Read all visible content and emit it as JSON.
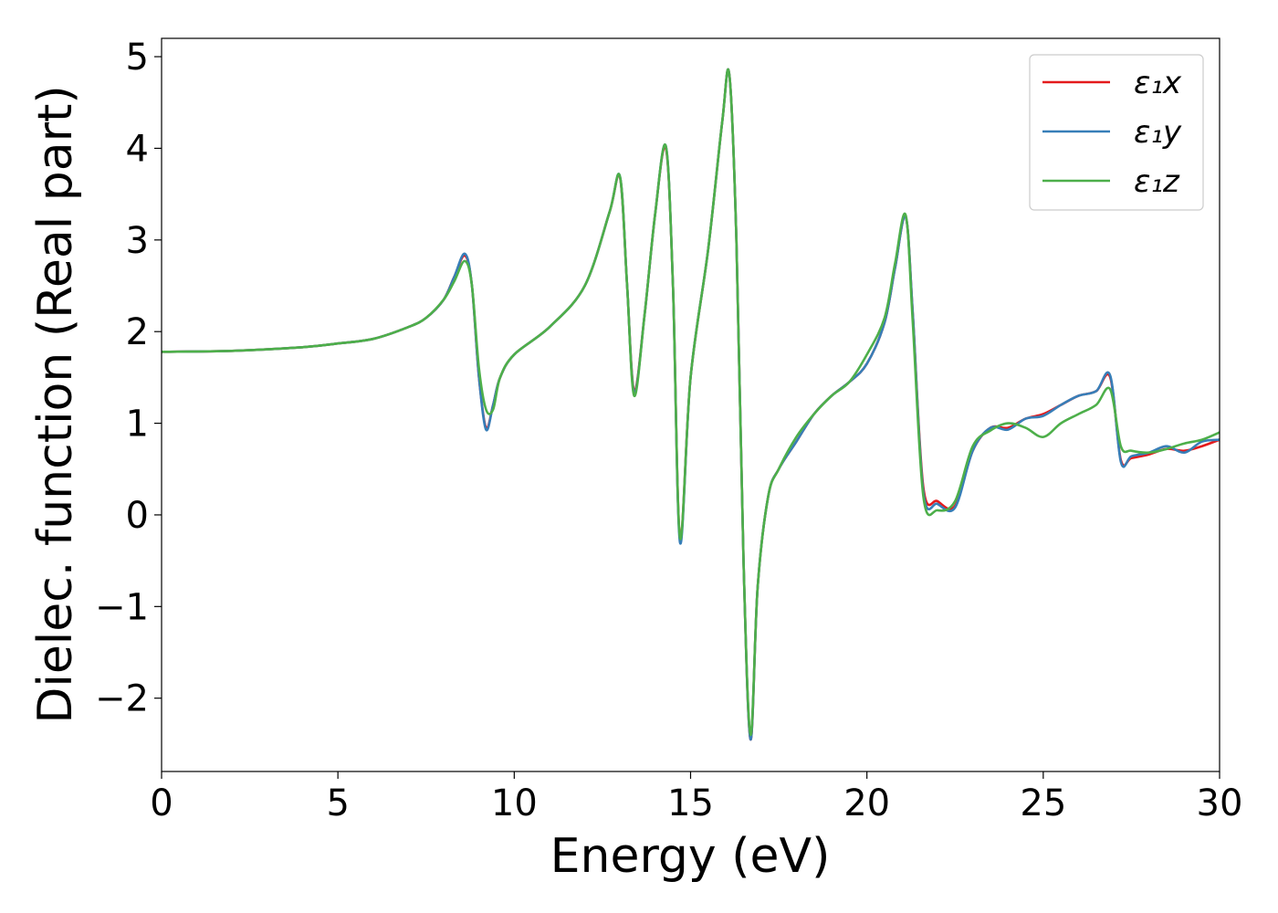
{
  "chart_data": {
    "type": "line",
    "title": "",
    "xlabel": "Energy (eV)",
    "ylabel": "Dielec. function (Real part)",
    "xlim": [
      0,
      30
    ],
    "ylim": [
      -2.8,
      5.2
    ],
    "xticks": [
      0,
      5,
      10,
      15,
      20,
      25,
      30
    ],
    "xtick_labels": [
      "0",
      "5",
      "10",
      "15",
      "20",
      "25",
      "30"
    ],
    "yticks": [
      -2,
      -1,
      0,
      1,
      2,
      3,
      4,
      5
    ],
    "ytick_labels": [
      "−2",
      "−1",
      "0",
      "1",
      "2",
      "3",
      "4",
      "5"
    ],
    "grid": false,
    "legend_position": "top-right",
    "series": [
      {
        "name": "ε₁x",
        "color": "#e41a1c",
        "x": [
          0,
          2,
          4,
          5,
          6,
          7,
          7.5,
          8,
          8.3,
          8.6,
          8.8,
          9.0,
          9.2,
          9.4,
          9.6,
          10,
          11,
          12,
          12.7,
          13.0,
          13.2,
          13.4,
          13.7,
          14.0,
          14.3,
          14.5,
          14.7,
          15.0,
          15.5,
          15.9,
          16.1,
          16.3,
          16.5,
          16.7,
          16.9,
          17.2,
          17.5,
          18,
          18.5,
          19,
          19.5,
          20,
          20.5,
          20.8,
          21.1,
          21.3,
          21.6,
          22.0,
          22.5,
          23.0,
          23.5,
          24,
          24.5,
          25,
          25.5,
          26,
          26.5,
          26.9,
          27.2,
          27.5,
          28,
          28.5,
          29,
          29.5,
          30
        ],
        "y": [
          1.78,
          1.79,
          1.83,
          1.87,
          1.92,
          2.05,
          2.15,
          2.35,
          2.6,
          2.83,
          2.5,
          1.5,
          0.95,
          1.2,
          1.5,
          1.75,
          2.05,
          2.5,
          3.3,
          3.68,
          2.5,
          1.35,
          2.2,
          3.3,
          4.0,
          2.5,
          -0.25,
          1.5,
          2.9,
          4.3,
          4.8,
          3.0,
          -0.5,
          -2.45,
          -0.8,
          0.2,
          0.5,
          0.8,
          1.1,
          1.3,
          1.45,
          1.65,
          2.1,
          2.7,
          3.25,
          2.2,
          0.3,
          0.15,
          0.1,
          0.7,
          0.95,
          0.95,
          1.05,
          1.1,
          1.2,
          1.3,
          1.35,
          1.5,
          0.6,
          0.62,
          0.66,
          0.72,
          0.7,
          0.75,
          0.82
        ]
      },
      {
        "name": "ε₁y",
        "color": "#377eb8",
        "x": [
          0,
          2,
          4,
          5,
          6,
          7,
          7.5,
          8,
          8.3,
          8.6,
          8.8,
          9.0,
          9.2,
          9.4,
          9.6,
          10,
          11,
          12,
          12.7,
          13.0,
          13.2,
          13.4,
          13.7,
          14.0,
          14.3,
          14.5,
          14.7,
          15.0,
          15.5,
          15.9,
          16.1,
          16.3,
          16.5,
          16.7,
          16.9,
          17.2,
          17.5,
          18,
          18.5,
          19,
          19.5,
          20,
          20.5,
          20.8,
          21.1,
          21.3,
          21.6,
          22.0,
          22.5,
          23.0,
          23.5,
          24,
          24.5,
          25,
          25.5,
          26,
          26.5,
          26.9,
          27.2,
          27.5,
          28,
          28.5,
          29,
          29.5,
          30
        ],
        "y": [
          1.78,
          1.79,
          1.83,
          1.87,
          1.92,
          2.05,
          2.15,
          2.35,
          2.6,
          2.85,
          2.5,
          1.5,
          0.93,
          1.2,
          1.5,
          1.75,
          2.05,
          2.5,
          3.3,
          3.69,
          2.5,
          1.33,
          2.2,
          3.3,
          4.02,
          2.5,
          -0.3,
          1.5,
          2.9,
          4.3,
          4.8,
          3.0,
          -0.5,
          -2.45,
          -0.8,
          0.2,
          0.5,
          0.8,
          1.1,
          1.3,
          1.45,
          1.65,
          2.1,
          2.7,
          3.25,
          2.2,
          0.25,
          0.12,
          0.08,
          0.7,
          0.95,
          0.93,
          1.05,
          1.08,
          1.2,
          1.3,
          1.35,
          1.52,
          0.58,
          0.64,
          0.68,
          0.75,
          0.68,
          0.8,
          0.82
        ]
      },
      {
        "name": "ε₁z",
        "color": "#4daf4a",
        "x": [
          0,
          2,
          4,
          5,
          6,
          7,
          7.5,
          8,
          8.3,
          8.6,
          8.8,
          9.0,
          9.2,
          9.4,
          9.6,
          10,
          11,
          12,
          12.7,
          13.0,
          13.2,
          13.4,
          13.7,
          14.0,
          14.3,
          14.5,
          14.7,
          15.0,
          15.5,
          15.9,
          16.1,
          16.3,
          16.5,
          16.7,
          16.9,
          17.2,
          17.5,
          18,
          18.5,
          19,
          19.5,
          20,
          20.5,
          20.8,
          21.1,
          21.3,
          21.6,
          22.0,
          22.5,
          23.0,
          23.5,
          24,
          24.5,
          25,
          25.5,
          26,
          26.5,
          26.9,
          27.2,
          27.5,
          28,
          28.5,
          29,
          29.5,
          30
        ],
        "y": [
          1.78,
          1.79,
          1.83,
          1.87,
          1.92,
          2.05,
          2.15,
          2.35,
          2.55,
          2.77,
          2.5,
          1.6,
          1.15,
          1.15,
          1.5,
          1.75,
          2.05,
          2.5,
          3.3,
          3.69,
          2.5,
          1.3,
          2.2,
          3.3,
          4.02,
          2.5,
          -0.25,
          1.5,
          2.9,
          4.3,
          4.8,
          3.0,
          -0.5,
          -2.4,
          -0.8,
          0.2,
          0.5,
          0.85,
          1.1,
          1.3,
          1.45,
          1.75,
          2.15,
          2.75,
          3.27,
          2.1,
          0.2,
          0.05,
          0.15,
          0.75,
          0.92,
          1.0,
          0.95,
          0.85,
          1.0,
          1.1,
          1.2,
          1.37,
          0.75,
          0.7,
          0.68,
          0.72,
          0.78,
          0.82,
          0.9
        ]
      }
    ]
  }
}
